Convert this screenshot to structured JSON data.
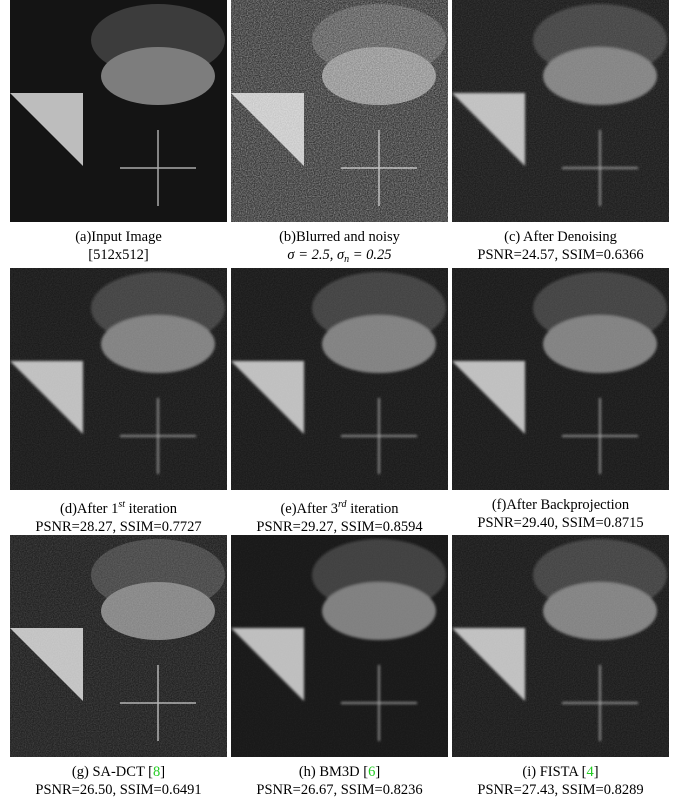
{
  "panels": [
    {
      "caption": [
        [
          {
            "text": "(a)Input Image"
          }
        ],
        [
          {
            "text": "[512x512]"
          }
        ]
      ]
    },
    {
      "caption": [
        [
          {
            "text": "(b)Blurred and noisy"
          }
        ],
        [
          {
            "text": "σ = 2.5, σ"
          },
          {
            "sub": "n"
          },
          {
            "text": " = 0.25"
          }
        ]
      ]
    },
    {
      "caption": [
        [
          {
            "text": "(c) After Denoising"
          }
        ],
        [
          {
            "text": "PSNR=24.57, SSIM=0.6366"
          }
        ]
      ]
    },
    {
      "caption": [
        [
          {
            "text": "(d)After 1"
          },
          {
            "sup": "st"
          },
          {
            "text": " iteration"
          }
        ],
        [
          {
            "text": "PSNR=28.27, SSIM=0.7727"
          }
        ]
      ]
    },
    {
      "caption": [
        [
          {
            "text": "(e)After 3"
          },
          {
            "sup": "rd"
          },
          {
            "text": " iteration"
          }
        ],
        [
          {
            "text": "PSNR=29.27, SSIM=0.8594"
          }
        ]
      ]
    },
    {
      "caption": [
        [
          {
            "text": "(f)After Backprojection"
          }
        ],
        [
          {
            "text": "PSNR=29.40, SSIM=0.8715"
          }
        ]
      ]
    },
    {
      "caption": [
        [
          {
            "text": "(g) SA-DCT ["
          },
          {
            "ref": "8"
          },
          {
            "text": "]"
          }
        ],
        [
          {
            "text": "PSNR=26.50, SSIM=0.6491"
          }
        ]
      ]
    },
    {
      "caption": [
        [
          {
            "text": "(h) BM3D ["
          },
          {
            "ref": "6"
          },
          {
            "text": "]"
          }
        ],
        [
          {
            "text": "PSNR=26.67, SSIM=0.8236"
          }
        ]
      ]
    },
    {
      "caption": [
        [
          {
            "text": "(i) FISTA ["
          },
          {
            "ref": "4"
          },
          {
            "text": "]"
          }
        ],
        [
          {
            "text": "PSNR=27.43, SSIM=0.8289"
          }
        ]
      ]
    }
  ]
}
